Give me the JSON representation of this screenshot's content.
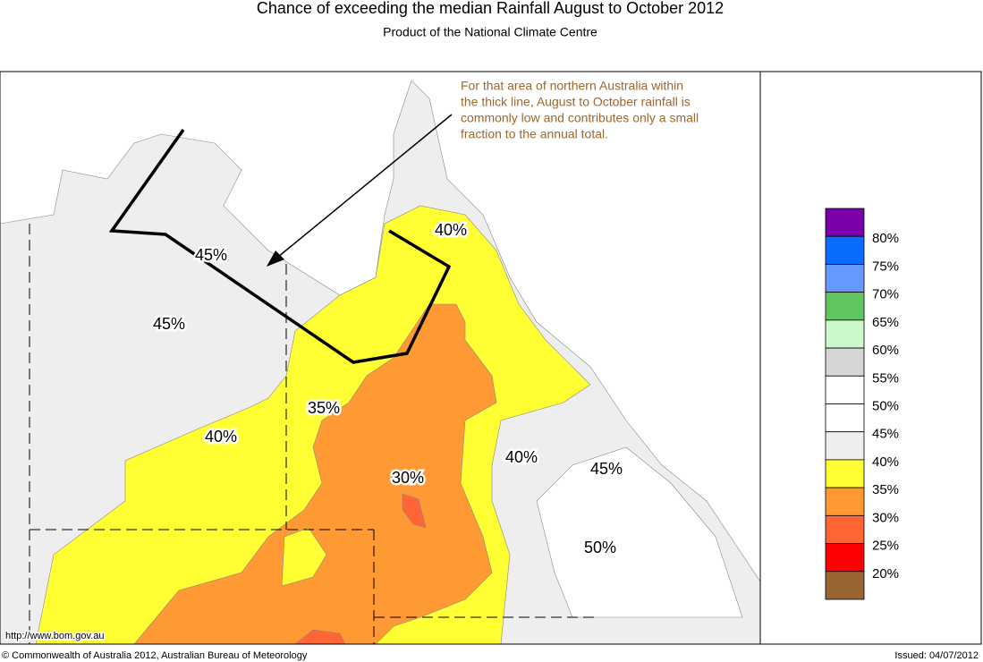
{
  "header": {
    "title": "Chance of exceeding the median Rainfall August to October 2012",
    "subtitle": "Product of the National Climate Centre"
  },
  "annotation": [
    "For that area of northern Australia within",
    "the thick line, August to October rainfall is",
    "commonly low and contributes only a small",
    "fraction to the annual total."
  ],
  "map_labels": [
    "45%",
    "45%",
    "40%",
    "35%",
    "40%",
    "30%",
    "40%",
    "45%",
    "50%"
  ],
  "legend": {
    "colors": [
      "#7a00aa",
      "#0a6cff",
      "#6699ff",
      "#5fc55f",
      "#ccf9cc",
      "#d6d6d6",
      "#ffffff",
      "#ffffff",
      "#eeeeee",
      "#ffff33",
      "#ff9933",
      "#ff6633",
      "#ff0000",
      "#996633"
    ],
    "labels": [
      "80%",
      "75%",
      "70%",
      "65%",
      "60%",
      "55%",
      "50%",
      "45%",
      "40%",
      "35%",
      "30%",
      "25%",
      "20%"
    ]
  },
  "footer": {
    "url": "http://www.bom.gov.au",
    "copyright": "© Commonwealth of Australia 2012, Australian Bureau of Meteorology",
    "issued": "Issued: 04/07/2012"
  }
}
